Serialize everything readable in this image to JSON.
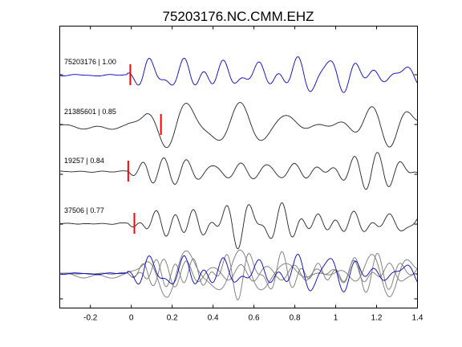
{
  "chart_data": {
    "type": "line",
    "title": "75203176.NC.CMM.EHZ",
    "xlabel": "",
    "ylabel": "",
    "xlim": [
      -0.35,
      1.4
    ],
    "xticks": [
      -0.2,
      0,
      0.2,
      0.4,
      0.6,
      0.8,
      1,
      1.2,
      1.4
    ],
    "xtick_labels": [
      "-0.2",
      "0",
      "0.2",
      "0.4",
      "0.6",
      "0.8",
      "1",
      "1.2",
      "1.4"
    ],
    "grid": false,
    "legend": "none",
    "colors": {
      "reference_trace": "#0000cc",
      "trace": "#222222",
      "stack_trace": "#777777",
      "pick_marker": "#ff0000"
    },
    "series": [
      {
        "id": "75203176",
        "label": "75203176 | 1.00",
        "correlation": 1.0,
        "pick_time": -0.005,
        "reference": true
      },
      {
        "id": "21385601",
        "label": "21385601 | 0.85",
        "correlation": 0.85,
        "pick_time": 0.145,
        "reference": false
      },
      {
        "id": "19257",
        "label": "19257 | 0.84",
        "correlation": 0.84,
        "pick_time": -0.015,
        "reference": false
      },
      {
        "id": "37506",
        "label": "37506 | 0.77",
        "correlation": 0.77,
        "pick_time": 0.015,
        "reference": false
      }
    ]
  }
}
